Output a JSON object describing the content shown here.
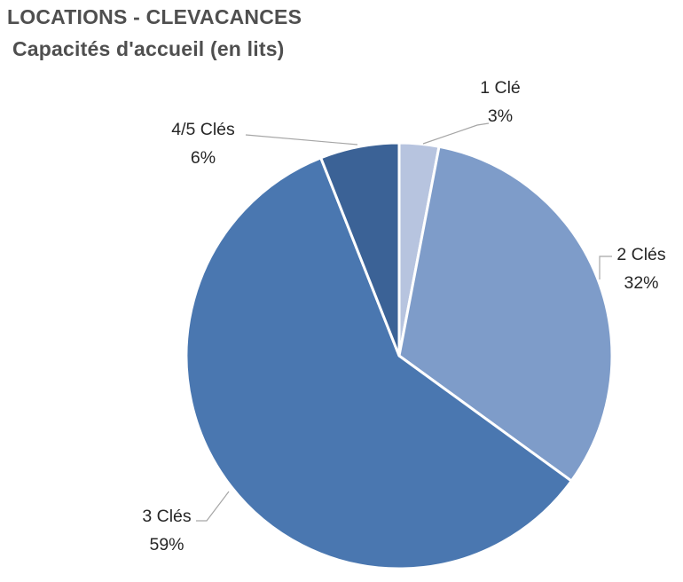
{
  "chart_data": {
    "type": "pie",
    "title": "LOCATIONS - CLEVACANCES",
    "subtitle": "Capacités d'accueil (en lits)",
    "start_angle_deg": 0,
    "direction": "clockwise",
    "labels_position": "outside-with-leader-lines",
    "legend": "none",
    "slices": [
      {
        "label": "1 Clé",
        "value": 3,
        "pct_label": "3%",
        "color": "#b7c4df"
      },
      {
        "label": "2 Clés",
        "value": 32,
        "pct_label": "32%",
        "color": "#7e9cc9"
      },
      {
        "label": "3 Clés",
        "value": 59,
        "pct_label": "59%",
        "color": "#4a77b0"
      },
      {
        "label": "4/5 Clés",
        "value": 6,
        "pct_label": "6%",
        "color": "#3b6296"
      }
    ],
    "colors": {
      "leader_line": "#a6a6a6",
      "slice_border": "#ffffff",
      "title_text": "#4f4f4f",
      "label_text": "#262626",
      "background": "#ffffff"
    }
  }
}
